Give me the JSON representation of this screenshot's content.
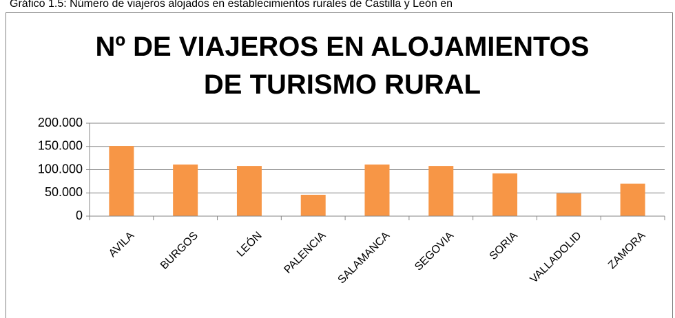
{
  "caption": "Gráfico 1.5: Número de viajeros alojados en establecimientos rurales de Castilla y León en",
  "chart_data": {
    "type": "bar",
    "title": "Nº DE VIAJEROS EN ALOJAMIENTOS DE TURISMO RURAL",
    "categories": [
      "AVILA",
      "BURGOS",
      "LEÓN",
      "PALENCIA",
      "SALAMANCA",
      "SEGOVIA",
      "SORIA",
      "VALLADOLID",
      "ZAMORA"
    ],
    "values": [
      151000,
      111000,
      108000,
      46000,
      111000,
      108000,
      92000,
      49000,
      70000
    ],
    "color": "#f79646",
    "ylim": [
      0,
      200000
    ],
    "yticks": [
      0,
      {
        "value": 50000,
        "label": "50.000"
      },
      {
        "value": 100000,
        "label": "100.000"
      },
      {
        "value": 150000,
        "label": "150.000"
      },
      {
        "value": 200000,
        "label": "200.000"
      }
    ],
    "grid": true
  }
}
